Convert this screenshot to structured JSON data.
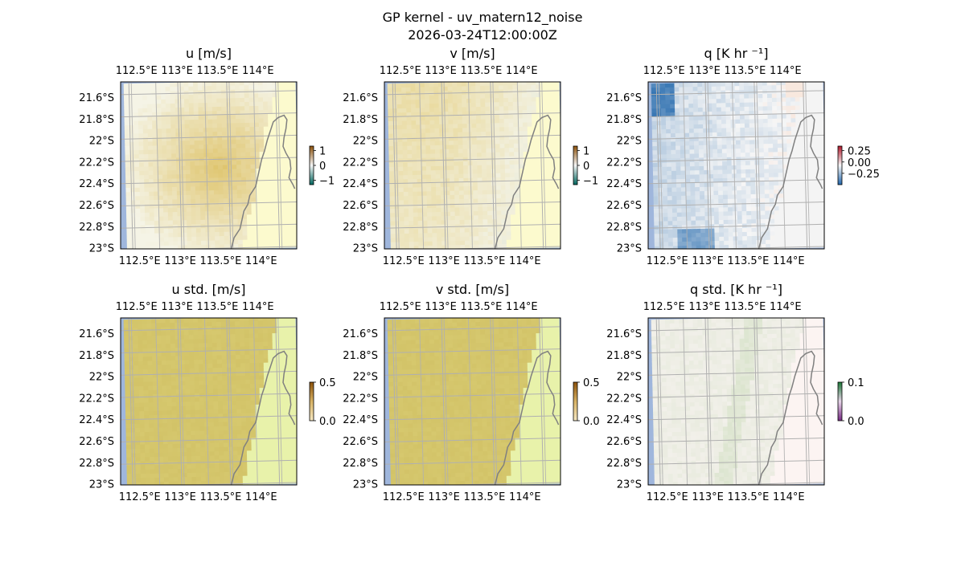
{
  "figure": {
    "title_line1": "GP kernel - uv_matern12_noise",
    "title_line2": "2026-03-24T12:00:00Z"
  },
  "axes": {
    "lon_ticks": [
      "112.5°E",
      "113°E",
      "113.5°E",
      "114°E"
    ],
    "lat_ticks": [
      "21.6°S",
      "21.8°S",
      "22°S",
      "22.2°S",
      "22.4°S",
      "22.6°S",
      "22.8°S",
      "23°S"
    ],
    "lon_values": [
      112.5,
      113.0,
      113.5,
      114.0
    ],
    "lat_values": [
      -21.6,
      -21.8,
      -22.0,
      -22.2,
      -22.4,
      -22.6,
      -22.8,
      -23.0
    ],
    "extent": {
      "lon": [
        112.4,
        114.2
      ],
      "lat": [
        -23.0,
        -21.5
      ]
    }
  },
  "chart_data": [
    {
      "type": "heatmap",
      "title": "u [m/s]",
      "variable": "u",
      "cmap": "BrBG",
      "colorbar": {
        "ticks": [
          "1",
          "0",
          "−1"
        ],
        "values": [
          1,
          0,
          -1
        ],
        "range": [
          -1.3,
          1.3
        ]
      },
      "value_range_estimate": [
        -0.1,
        0.35
      ]
    },
    {
      "type": "heatmap",
      "title": "v [m/s]",
      "variable": "v",
      "cmap": "BrBG",
      "colorbar": {
        "ticks": [
          "1",
          "0",
          "−1"
        ],
        "values": [
          1,
          0,
          -1
        ],
        "range": [
          -1.3,
          1.3
        ]
      },
      "value_range_estimate": [
        -0.15,
        0.2
      ]
    },
    {
      "type": "heatmap",
      "title": "q [K hr ⁻¹]",
      "variable": "q",
      "cmap": "RdBu_r",
      "colorbar": {
        "ticks": [
          "0.25",
          "0.00",
          "−0.25"
        ],
        "values": [
          0.25,
          0,
          -0.25
        ],
        "range": [
          -0.5,
          0.35
        ]
      },
      "value_range_estimate": [
        -0.45,
        0.1
      ]
    },
    {
      "type": "heatmap",
      "title": "u std. [m/s]",
      "variable": "u_std",
      "cmap": "BrBG",
      "colorbar": {
        "ticks": [
          "0.5",
          "0.0"
        ],
        "values": [
          0.5,
          0.0
        ],
        "range": [
          0,
          0.5
        ]
      },
      "value_range_estimate": [
        0.2,
        0.45
      ]
    },
    {
      "type": "heatmap",
      "title": "v std. [m/s]",
      "variable": "v_std",
      "cmap": "BrBG",
      "colorbar": {
        "ticks": [
          "0.5",
          "0.0"
        ],
        "values": [
          0.5,
          0.0
        ],
        "range": [
          0,
          0.5
        ]
      },
      "value_range_estimate": [
        0.2,
        0.45
      ]
    },
    {
      "type": "heatmap",
      "title": "q std. [K hr ⁻¹]",
      "variable": "q_std",
      "cmap": "PRGn",
      "colorbar": {
        "ticks": [
          "0.1",
          "0.0"
        ],
        "values": [
          0.1,
          0.0
        ],
        "range": [
          0,
          0.1
        ]
      },
      "value_range_estimate": [
        0.0,
        0.05
      ]
    }
  ],
  "colors": {
    "ocean_edge": "#9fb6dc",
    "grid": "#b0b0b0",
    "coast": "#808080"
  }
}
